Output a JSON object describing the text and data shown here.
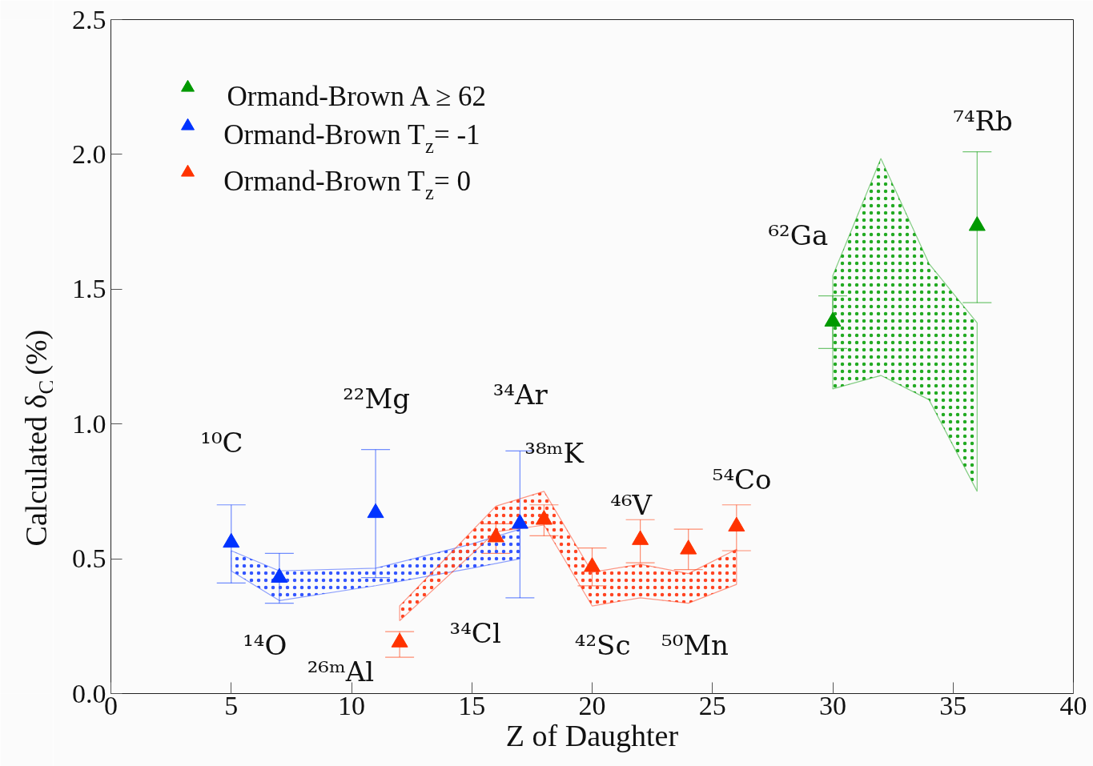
{
  "chart_data": {
    "type": "scatter",
    "xlabel": "Z of Daughter",
    "ylabel": "Calculated δ$_{C}$ (%)",
    "marker": "triangle",
    "legend": "top left",
    "grid": false,
    "xlim": [
      0,
      40
    ],
    "ylim": [
      0,
      2.5
    ],
    "xticks": [
      0,
      5,
      10,
      15,
      20,
      25,
      30,
      35,
      40
    ],
    "yticks": [
      {
        "value": 0,
        "label": "0.0"
      },
      {
        "value": 0.5,
        "label": "0.5"
      },
      {
        "value": 1,
        "label": "1.0"
      },
      {
        "value": 1.5,
        "label": "1.5"
      },
      {
        "value": 2,
        "label": "2.0"
      },
      {
        "value": 2.5,
        "label": "2.5"
      }
    ],
    "series": [
      {
        "name": "Ormand-Brown A ≥ 62",
        "color": "#009900",
        "x": [
          30,
          36
        ],
        "values": [
          1.38,
          1.735
        ],
        "errors": [
          [
            1.28,
            1.475
          ],
          [
            1.45,
            2.01
          ]
        ]
      },
      {
        "name": "Ormand-Brown T$_{z}$= -1",
        "color": "#0033ff",
        "x": [
          5,
          7,
          11,
          17
        ],
        "values": [
          0.56,
          0.43,
          0.67,
          0.63
        ],
        "errors": [
          [
            0.41,
            0.7
          ],
          [
            0.335,
            0.52
          ],
          [
            0.43,
            0.905
          ],
          [
            0.355,
            0.9
          ]
        ]
      },
      {
        "name": "Ormand-Brown T$_{z}$=  0",
        "color": "#ff3300",
        "x": [
          12,
          16,
          18,
          20,
          22,
          24,
          26
        ],
        "values": [
          0.19,
          0.58,
          0.645,
          0.47,
          0.57,
          0.535,
          0.62
        ],
        "errors": [
          [
            0.135,
            0.23
          ],
          [
            0.52,
            0.63
          ],
          [
            0.585,
            0.7
          ],
          [
            0.4,
            0.54
          ],
          [
            0.485,
            0.645
          ],
          [
            0.46,
            0.61
          ],
          [
            0.53,
            0.7
          ]
        ]
      },
      {
        "color": "#3355ff",
        "type": "area",
        "x": [
          5,
          7,
          11,
          15,
          17
        ],
        "values": [
          null,
          null,
          null,
          null,
          null
        ],
        "lower": [
          0.455,
          0.345,
          0.4,
          0.465,
          0.5
        ],
        "upper": [
          0.53,
          0.455,
          0.465,
          0.555,
          0.61
        ]
      },
      {
        "color": "#ff4422",
        "type": "area",
        "x": [
          12,
          16,
          18,
          20,
          22,
          24,
          26
        ],
        "values": [
          null,
          null,
          null,
          null,
          null,
          null,
          null
        ],
        "lower": [
          0.27,
          0.6,
          0.625,
          0.325,
          0.355,
          0.335,
          0.405
        ],
        "upper": [
          0.325,
          0.695,
          0.75,
          0.45,
          0.48,
          0.445,
          0.535
        ]
      },
      {
        "color": "#22aa22",
        "type": "area",
        "x": [
          30,
          32,
          34,
          36
        ],
        "values": [
          null,
          null,
          null,
          null
        ],
        "lower": [
          1.13,
          1.18,
          1.09,
          0.75
        ],
        "upper": [
          1.55,
          1.985,
          1.595,
          1.375
        ]
      }
    ],
    "annotations": [
      "¹⁰C",
      "¹⁴O",
      "²²Mg",
      "²⁶ᵐAl",
      "³⁴Cl",
      "³⁴Ar",
      "³⁸ᵐK",
      "⁴²Sc",
      "⁴⁶V",
      "⁵⁰Mn",
      "⁵⁴Co",
      "⁶²Ga",
      "⁷⁴Rb"
    ]
  }
}
